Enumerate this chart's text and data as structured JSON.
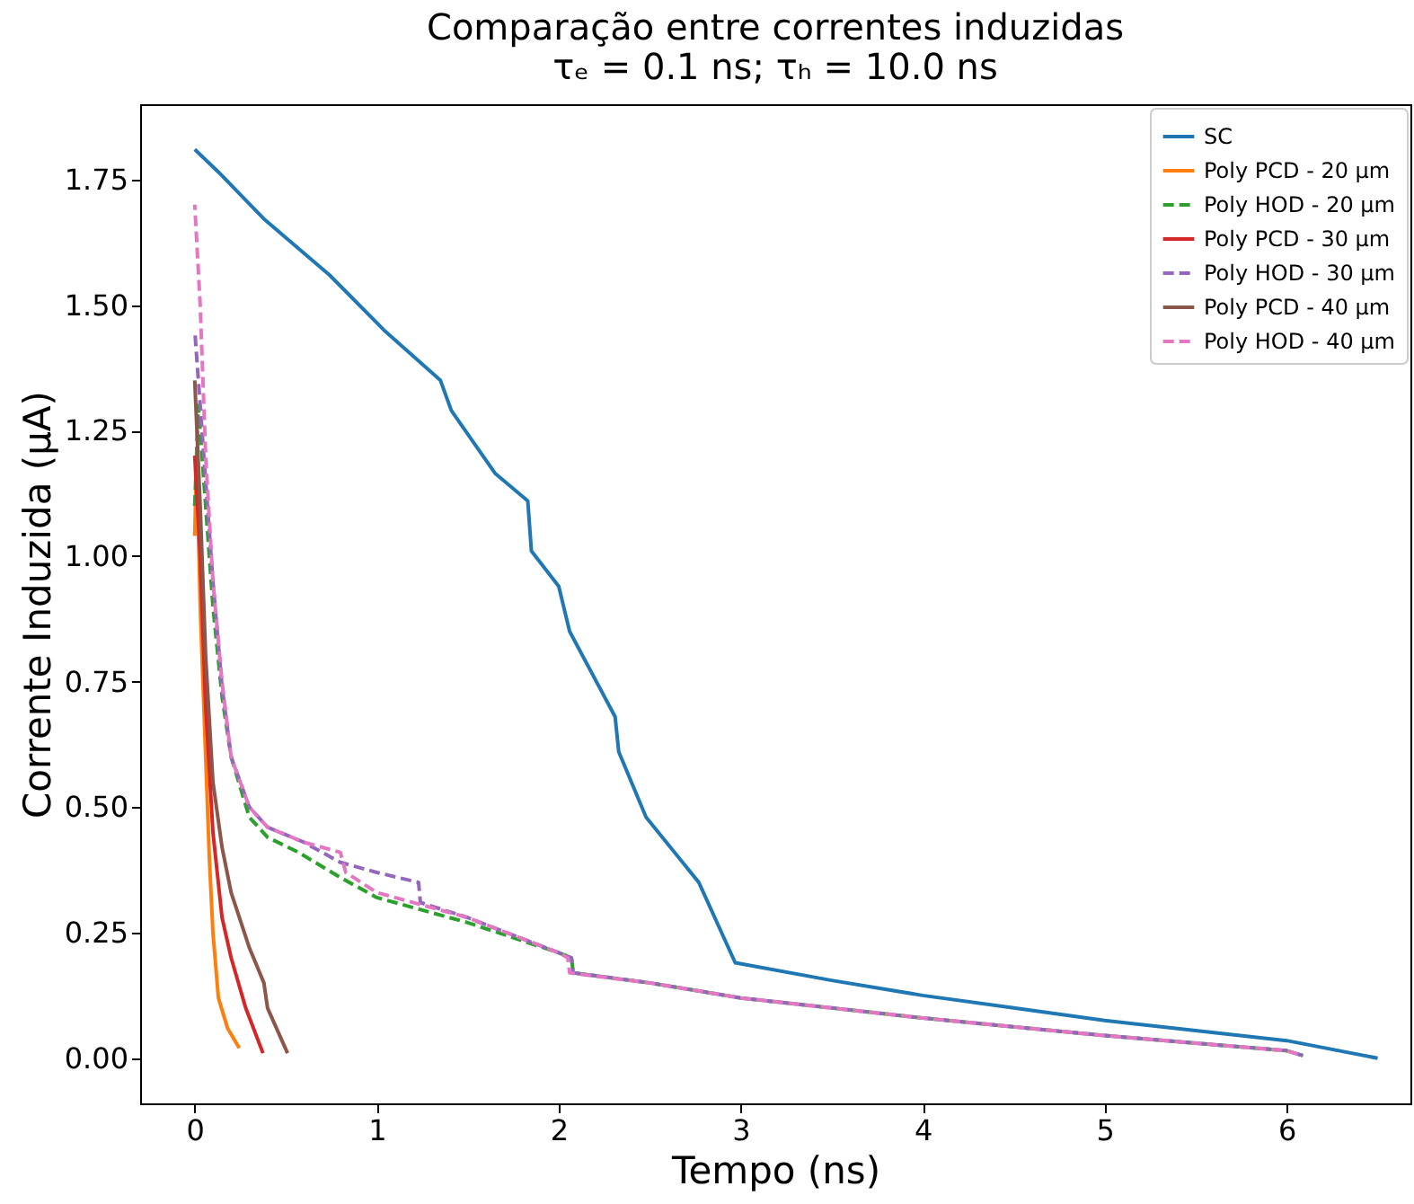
{
  "chart_data": {
    "type": "line",
    "title": "Comparação entre correntes induzidas",
    "subtitle": "τₑ = 0.1 ns; τₕ = 10.0 ns",
    "xlabel": "Tempo (ns)",
    "ylabel": "Corrente Induzida (μA)",
    "xlim": [
      -0.3,
      6.68
    ],
    "ylim": [
      -0.09,
      1.9
    ],
    "xticks": [
      0,
      1,
      2,
      3,
      4,
      5,
      6
    ],
    "yticks": [
      {
        "value": 0,
        "label": "0.00"
      },
      {
        "value": 0.25,
        "label": "0.25"
      },
      {
        "value": 0.5,
        "label": "0.50"
      },
      {
        "value": 0.75,
        "label": "0.75"
      },
      {
        "value": 1,
        "label": "1.00"
      },
      {
        "value": 1.25,
        "label": "1.25"
      },
      {
        "value": 1.5,
        "label": "1.50"
      },
      {
        "value": 1.75,
        "label": "1.75"
      }
    ],
    "grid": false,
    "legend": "top right",
    "series": [
      {
        "name": "SC",
        "color": "#1f77b4",
        "line_style": "solid",
        "x": [
          0,
          0.13,
          0.385,
          0.74,
          1.04,
          1.35,
          1.41,
          1.65,
          1.83,
          1.85,
          2.0,
          2.06,
          2.31,
          2.33,
          2.48,
          2.77,
          2.97,
          3.5,
          4,
          4.5,
          5,
          5.5,
          6,
          6.5
        ],
        "values": [
          1.81,
          1.765,
          1.67,
          1.56,
          1.45,
          1.35,
          1.29,
          1.165,
          1.11,
          1.01,
          0.94,
          0.85,
          0.68,
          0.61,
          0.48,
          0.35,
          0.19,
          0.155,
          0.125,
          0.1,
          0.075,
          0.055,
          0.035,
          0.0
        ]
      },
      {
        "name": "Poly PCD - 20 μm",
        "color": "#ff7f0e",
        "line_style": "solid",
        "x": [
          0,
          0.01,
          0.03,
          0.06,
          0.08,
          0.1,
          0.13,
          0.18,
          0.245
        ],
        "values": [
          1.04,
          1.2,
          0.9,
          0.6,
          0.4,
          0.25,
          0.12,
          0.06,
          0.02
        ]
      },
      {
        "name": "Poly HOD - 20 μm",
        "color": "#2ca02c",
        "line_style": "dashed",
        "x": [
          0,
          0.02,
          0.05,
          0.1,
          0.15,
          0.2,
          0.3,
          0.4,
          0.57,
          0.8,
          1.0,
          1.5,
          2.0,
          2.07,
          2.08,
          2.5,
          3,
          4,
          5,
          6,
          6.09
        ],
        "values": [
          1.1,
          1.3,
          1.15,
          0.9,
          0.72,
          0.6,
          0.48,
          0.44,
          0.41,
          0.36,
          0.32,
          0.27,
          0.21,
          0.2,
          0.17,
          0.15,
          0.12,
          0.08,
          0.045,
          0.015,
          0.005
        ]
      },
      {
        "name": "Poly PCD - 30 μm",
        "color": "#d62728",
        "line_style": "solid",
        "x": [
          0,
          0.03,
          0.06,
          0.1,
          0.15,
          0.2,
          0.28,
          0.375
        ],
        "values": [
          1.2,
          1.0,
          0.7,
          0.45,
          0.28,
          0.2,
          0.1,
          0.01
        ]
      },
      {
        "name": "Poly HOD - 30 μm",
        "color": "#9467bd",
        "line_style": "dashed",
        "x": [
          0,
          0.05,
          0.1,
          0.15,
          0.2,
          0.3,
          0.4,
          0.6,
          0.8,
          1.0,
          1.23,
          1.24,
          1.5,
          2.0,
          2.07,
          2.08,
          2.5,
          3,
          4,
          5,
          6,
          6.09
        ],
        "values": [
          1.45,
          1.2,
          0.95,
          0.74,
          0.6,
          0.5,
          0.46,
          0.43,
          0.39,
          0.37,
          0.35,
          0.31,
          0.28,
          0.21,
          0.2,
          0.17,
          0.15,
          0.12,
          0.08,
          0.045,
          0.015,
          0.005
        ]
      },
      {
        "name": "Poly PCD - 40 μm",
        "color": "#8c564b",
        "line_style": "solid",
        "x": [
          0,
          0.03,
          0.06,
          0.1,
          0.15,
          0.2,
          0.3,
          0.38,
          0.4,
          0.51
        ],
        "values": [
          1.35,
          1.1,
          0.8,
          0.55,
          0.42,
          0.33,
          0.22,
          0.15,
          0.1,
          0.01
        ]
      },
      {
        "name": "Poly HOD - 40 μm",
        "color": "#e377c2",
        "line_style": "dashed",
        "x": [
          0,
          0.03,
          0.06,
          0.1,
          0.15,
          0.2,
          0.3,
          0.4,
          0.6,
          0.8,
          0.83,
          1.0,
          1.5,
          2.0,
          2.05,
          2.06,
          2.5,
          3,
          4,
          5,
          6,
          6.09
        ],
        "values": [
          1.7,
          1.5,
          1.2,
          0.95,
          0.75,
          0.6,
          0.5,
          0.46,
          0.43,
          0.41,
          0.37,
          0.33,
          0.28,
          0.21,
          0.2,
          0.17,
          0.15,
          0.12,
          0.08,
          0.045,
          0.015,
          0.005
        ]
      }
    ]
  }
}
